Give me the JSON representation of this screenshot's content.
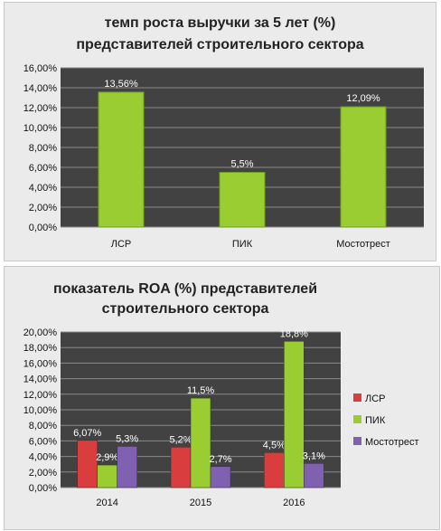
{
  "chart_data": [
    {
      "type": "bar",
      "title": [
        "темп роста выручки за 5 лет (%)",
        "представителей строительного сектора"
      ],
      "categories": [
        "ЛСР",
        "ПИК",
        "Мостотрест"
      ],
      "values": [
        13.56,
        5.5,
        12.09
      ],
      "data_labels": [
        "13,56%",
        "5,5%",
        "12,09%"
      ],
      "ylim": [
        0,
        16
      ],
      "yticks": [
        0,
        2,
        4,
        6,
        8,
        10,
        12,
        14,
        16
      ],
      "ytick_labels": [
        "0,00%",
        "2,00%",
        "4,00%",
        "6,00%",
        "8,00%",
        "10,00%",
        "12,00%",
        "14,00%",
        "16,00%"
      ],
      "grid": true,
      "legend": "none",
      "colors": {
        "bar": "#9acd32",
        "plot_bg": "#424242"
      }
    },
    {
      "type": "bar",
      "title": [
        "показатель ROA (%) представителей",
        "строительного сектора"
      ],
      "categories": [
        "2014",
        "2015",
        "2016"
      ],
      "series": [
        {
          "name": "ЛСР",
          "values": [
            6.07,
            5.2,
            4.5
          ],
          "labels": [
            "6,07%",
            "5,2%",
            "4,5%"
          ],
          "color": "#d93d3d"
        },
        {
          "name": "ПИК",
          "values": [
            2.9,
            11.5,
            18.8
          ],
          "labels": [
            "2,9%",
            "11,5%",
            "18,8%"
          ],
          "color": "#9acd32"
        },
        {
          "name": "Мостотрест",
          "values": [
            5.3,
            2.7,
            3.1
          ],
          "labels": [
            "5,3%",
            "2,7%",
            "3,1%"
          ],
          "color": "#8060b0"
        }
      ],
      "ylim": [
        0,
        20
      ],
      "yticks": [
        0,
        2,
        4,
        6,
        8,
        10,
        12,
        14,
        16,
        18,
        20
      ],
      "ytick_labels": [
        "0,00%",
        "2,00%",
        "4,00%",
        "6,00%",
        "8,00%",
        "10,00%",
        "12,00%",
        "14,00%",
        "16,00%",
        "18,00%",
        "20,00%"
      ],
      "grid": true,
      "legend": "right",
      "colors": {
        "plot_bg": "#424242"
      }
    }
  ]
}
